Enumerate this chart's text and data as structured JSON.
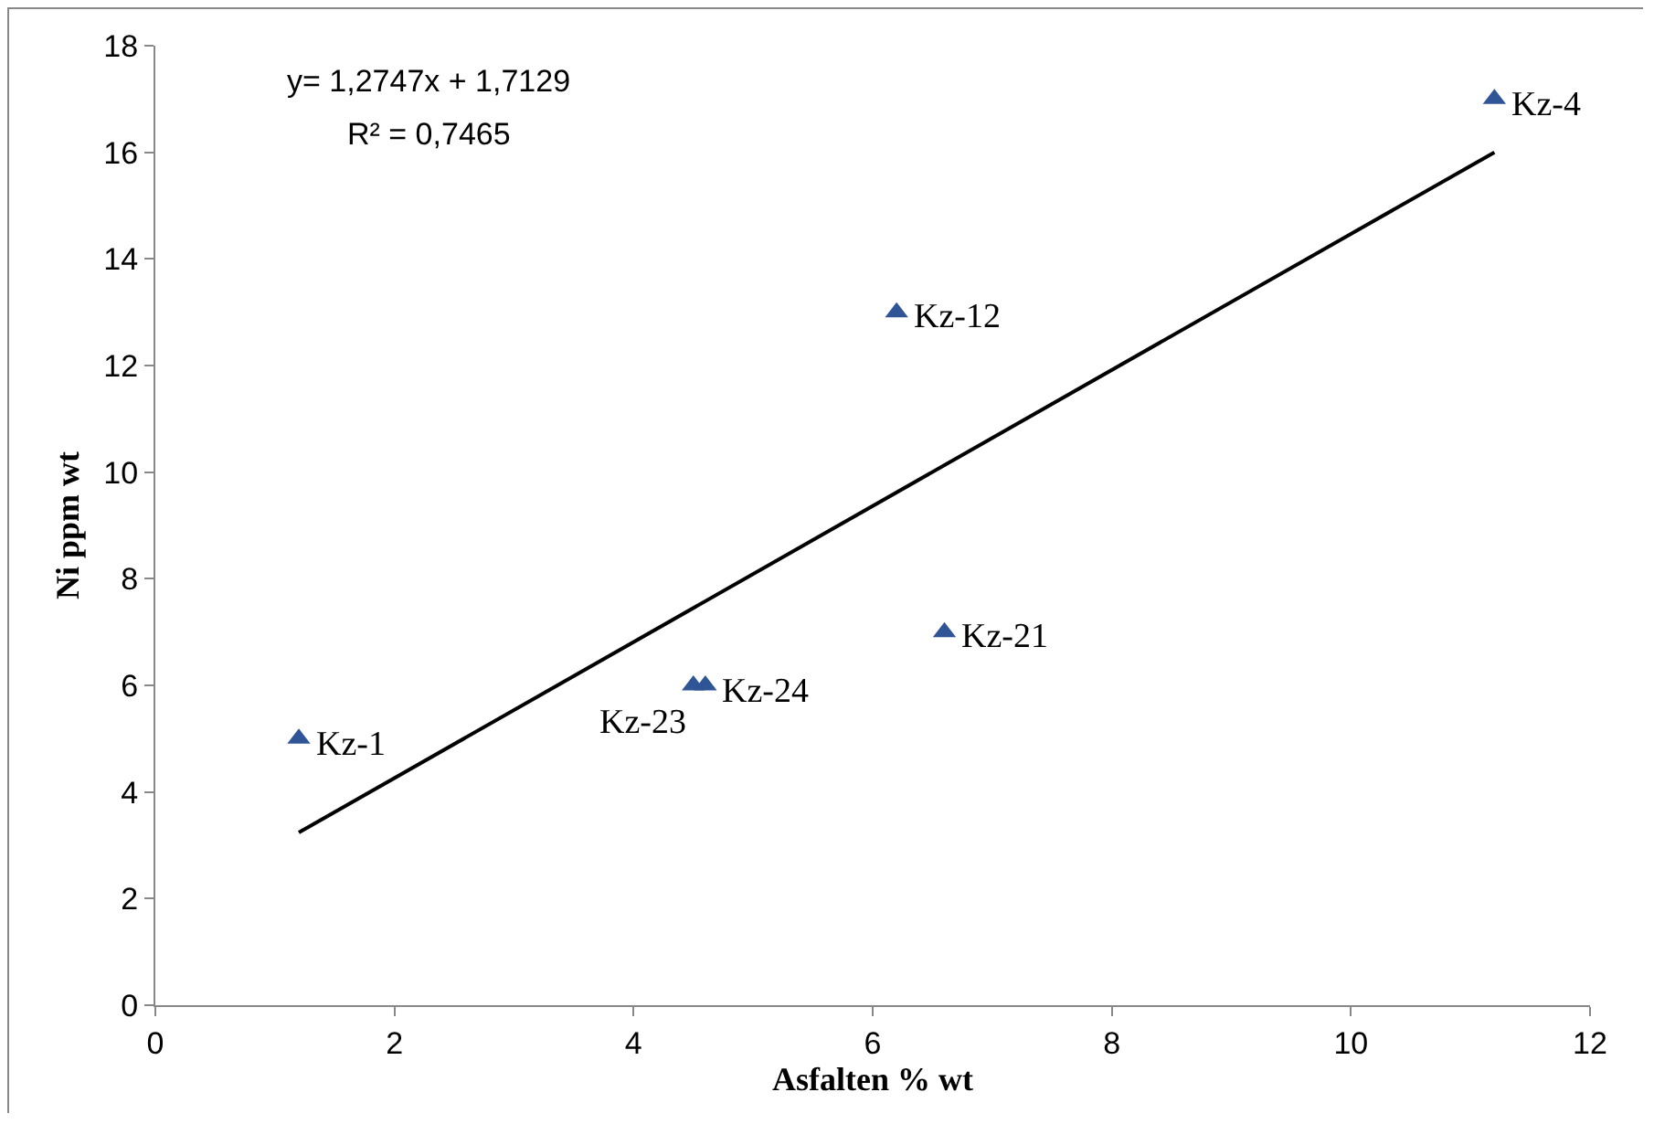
{
  "chart_data": {
    "type": "scatter",
    "xlabel": "Asfalten % wt",
    "ylabel": "Ni ppm wt",
    "xlim": [
      0,
      12
    ],
    "xticks": [
      0,
      2,
      4,
      6,
      8,
      10,
      12
    ],
    "ylim": [
      0,
      18
    ],
    "yticks": [
      0,
      2,
      4,
      6,
      8,
      10,
      12,
      14,
      16,
      18
    ],
    "grid": false,
    "series": [
      {
        "marker": "triangle",
        "color": "#2f5597",
        "x": [
          1.2,
          4.5,
          4.6,
          6.2,
          6.6,
          11.2
        ],
        "values": [
          5,
          6,
          6,
          13,
          7,
          17
        ]
      },
      {
        "type": "line",
        "color": "#000000",
        "x": [
          1.2,
          11.2
        ],
        "values": [
          3.24,
          16
        ]
      }
    ],
    "annotations": [
      "y= 1,2747x + 1,7129",
      "R² = 0,7465",
      {
        "text": "Kz-1",
        "x": 1.2,
        "y": 5
      },
      {
        "text": "Kz-23",
        "x": 4.5,
        "y": 6
      },
      {
        "text": "Kz-24",
        "x": 4.6,
        "y": 6
      },
      {
        "text": "Kz-12",
        "x": 6.2,
        "y": 13
      },
      {
        "text": "Kz-21",
        "x": 6.6,
        "y": 7
      },
      {
        "text": "Kz-4",
        "x": 11.2,
        "y": 17
      }
    ]
  }
}
